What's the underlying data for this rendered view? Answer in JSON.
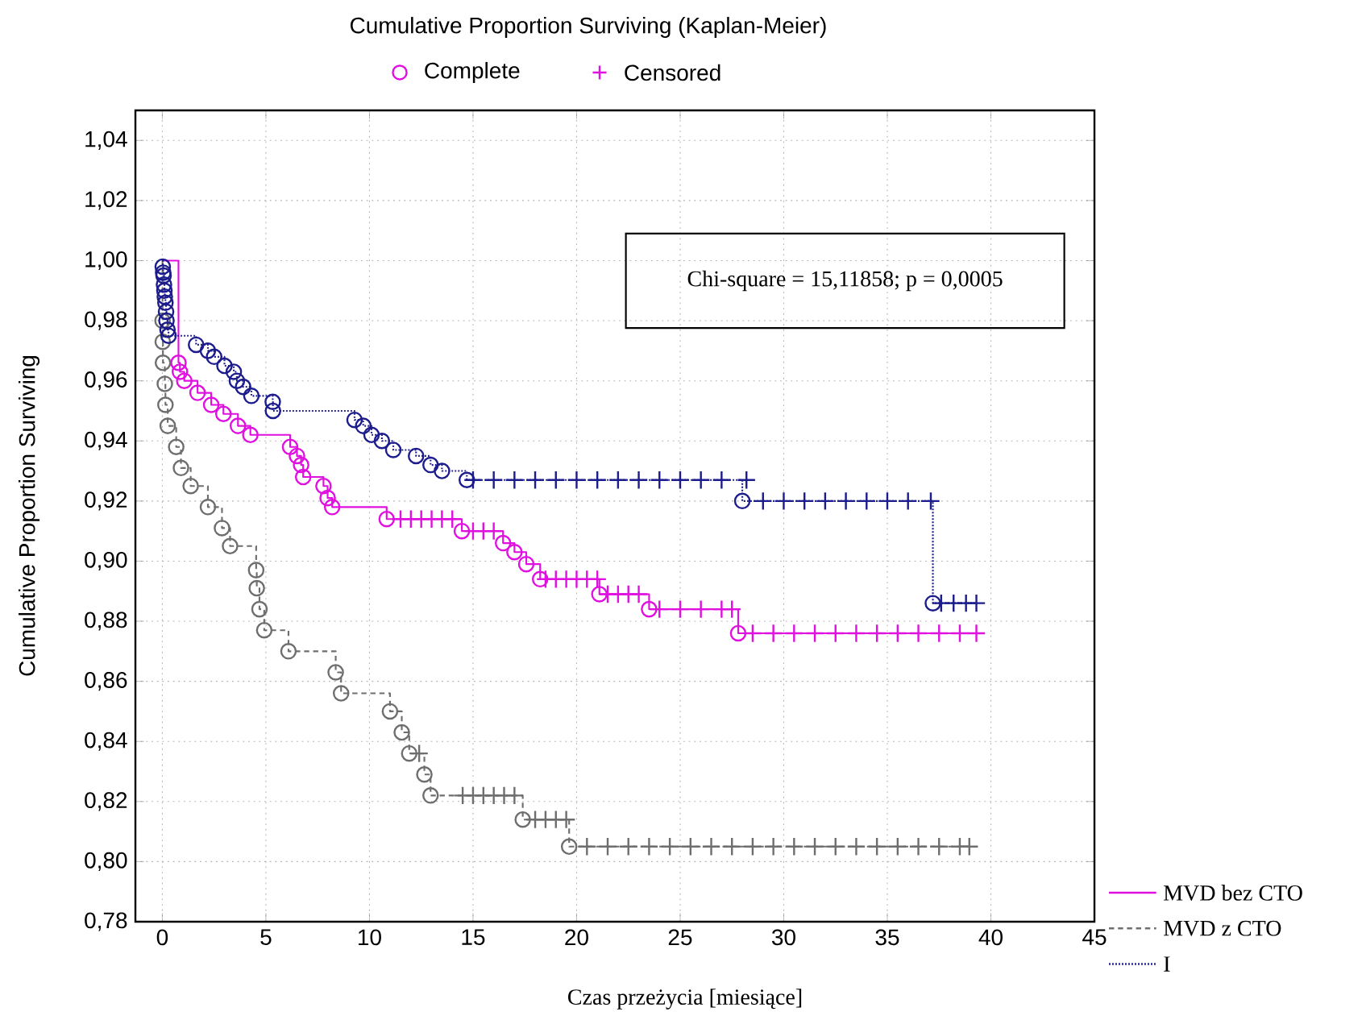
{
  "chart_data": {
    "type": "step",
    "title": "Cumulative Proportion Surviving (Kaplan-Meier)",
    "xlabel": "Czas przeżycia [miesiące]",
    "ylabel": "Cumulative Proportion Surviving",
    "xlim": [
      -1.3,
      45
    ],
    "ylim": [
      0.78,
      1.05
    ],
    "xticks": [
      0,
      5,
      10,
      15,
      20,
      25,
      30,
      35,
      40,
      45
    ],
    "yticks": [
      {
        "value": 0.78,
        "label": "0,78"
      },
      {
        "value": 0.8,
        "label": "0,80"
      },
      {
        "value": 0.82,
        "label": "0,82"
      },
      {
        "value": 0.84,
        "label": "0,84"
      },
      {
        "value": 0.86,
        "label": "0,86"
      },
      {
        "value": 0.88,
        "label": "0,88"
      },
      {
        "value": 0.9,
        "label": "0,90"
      },
      {
        "value": 0.92,
        "label": "0,92"
      },
      {
        "value": 0.94,
        "label": "0,94"
      },
      {
        "value": 0.96,
        "label": "0,96"
      },
      {
        "value": 0.98,
        "label": "0,98"
      },
      {
        "value": 1.0,
        "label": "1,00"
      },
      {
        "value": 1.02,
        "label": "1,02"
      },
      {
        "value": 1.04,
        "label": "1,04"
      }
    ],
    "grid": true,
    "legend": "bottom right",
    "annotations": [
      "Chi-square = 15,11858; p = 0,0005"
    ],
    "series": [
      {
        "name": "MVD bez CTO",
        "color": "#e010e0",
        "line_style": "solid",
        "x": [
          0,
          0.78,
          0.85,
          1.06,
          1.7,
          2.36,
          2.95,
          3.65,
          4.25,
          6.17,
          6.5,
          6.7,
          6.8,
          7.78,
          7.98,
          8.2,
          10.83,
          14.46,
          16.45,
          17.0,
          17.57,
          18.24,
          21.1,
          23.5,
          27.8,
          39.3
        ],
        "values": [
          1.0,
          0.966,
          0.963,
          0.96,
          0.956,
          0.952,
          0.949,
          0.945,
          0.942,
          0.938,
          0.935,
          0.932,
          0.928,
          0.925,
          0.921,
          0.918,
          0.914,
          0.91,
          0.906,
          0.903,
          0.899,
          0.894,
          0.889,
          0.884,
          0.876,
          0.876
        ]
      },
      {
        "name": "MVD z CTO",
        "color": "#6e6e6e",
        "line_style": "dashed",
        "x": [
          0,
          0.01,
          0.02,
          0.03,
          0.12,
          0.15,
          0.26,
          0.67,
          0.9,
          1.37,
          2.2,
          2.88,
          3.27,
          4.53,
          4.56,
          4.69,
          4.92,
          6.09,
          8.37,
          8.63,
          10.99,
          11.56,
          11.92,
          12.65,
          12.95,
          17.4,
          19.64,
          38.96
        ],
        "values": [
          1.0,
          0.98,
          0.973,
          0.966,
          0.959,
          0.952,
          0.945,
          0.938,
          0.931,
          0.925,
          0.918,
          0.911,
          0.905,
          0.897,
          0.891,
          0.884,
          0.877,
          0.87,
          0.863,
          0.856,
          0.85,
          0.843,
          0.836,
          0.829,
          0.822,
          0.814,
          0.805,
          0.805
        ]
      },
      {
        "name": "I",
        "color": "#1c1c8c",
        "line_style": "dotted",
        "x": [
          0,
          0.02,
          0.04,
          0.06,
          0.08,
          0.1,
          0.12,
          0.15,
          0.18,
          0.2,
          0.25,
          0.3,
          1.63,
          2.2,
          2.5,
          3.0,
          3.45,
          3.6,
          3.9,
          4.3,
          5.33,
          5.34,
          9.28,
          9.7,
          10.1,
          10.6,
          11.15,
          12.25,
          12.95,
          13.5,
          14.7,
          28.0,
          37.2,
          39.3
        ],
        "values": [
          1.0,
          0.998,
          0.996,
          0.995,
          0.992,
          0.99,
          0.988,
          0.986,
          0.983,
          0.98,
          0.977,
          0.975,
          0.972,
          0.97,
          0.968,
          0.965,
          0.963,
          0.96,
          0.958,
          0.955,
          0.953,
          0.95,
          0.947,
          0.945,
          0.942,
          0.94,
          0.937,
          0.935,
          0.932,
          0.93,
          0.927,
          0.92,
          0.886,
          0.886
        ]
      },
      {
        "name": "Complete",
        "type": "scatter",
        "marker": "circle",
        "x": [
          0.78,
          0.85,
          1.06,
          1.7,
          2.36,
          2.95,
          3.65,
          4.25,
          6.17,
          6.5,
          6.7,
          6.8,
          7.78,
          7.98,
          8.2,
          10.83,
          14.46,
          16.45,
          17.0,
          17.57,
          18.24,
          21.1,
          23.5,
          27.8,
          0.01,
          0.02,
          0.03,
          0.12,
          0.15,
          0.26,
          0.67,
          0.9,
          1.37,
          2.2,
          2.88,
          3.27,
          4.53,
          4.56,
          4.69,
          4.92,
          6.09,
          8.37,
          8.63,
          10.99,
          11.56,
          11.92,
          12.65,
          12.95,
          17.4,
          19.64,
          0.02,
          0.04,
          0.06,
          0.08,
          0.1,
          0.12,
          0.15,
          0.18,
          0.2,
          0.25,
          0.3,
          1.63,
          2.2,
          2.5,
          3.0,
          3.45,
          3.6,
          3.9,
          4.3,
          5.33,
          5.34,
          9.28,
          9.7,
          10.1,
          10.6,
          11.15,
          12.25,
          12.95,
          13.5,
          14.7,
          28.0,
          37.2
        ],
        "values": [
          0.966,
          0.963,
          0.96,
          0.956,
          0.952,
          0.949,
          0.945,
          0.942,
          0.938,
          0.935,
          0.932,
          0.928,
          0.925,
          0.921,
          0.918,
          0.914,
          0.91,
          0.906,
          0.903,
          0.899,
          0.894,
          0.889,
          0.884,
          0.876,
          0.98,
          0.973,
          0.966,
          0.959,
          0.952,
          0.945,
          0.938,
          0.931,
          0.925,
          0.918,
          0.911,
          0.905,
          0.897,
          0.891,
          0.884,
          0.877,
          0.87,
          0.863,
          0.856,
          0.85,
          0.843,
          0.836,
          0.829,
          0.822,
          0.814,
          0.805,
          0.998,
          0.996,
          0.995,
          0.992,
          0.99,
          0.988,
          0.986,
          0.983,
          0.98,
          0.977,
          0.975,
          0.972,
          0.97,
          0.968,
          0.965,
          0.963,
          0.96,
          0.958,
          0.955,
          0.953,
          0.95,
          0.947,
          0.945,
          0.942,
          0.94,
          0.937,
          0.935,
          0.932,
          0.93,
          0.927,
          0.92,
          0.886
        ],
        "colors": [
          "#e010e0",
          "#e010e0",
          "#e010e0",
          "#e010e0",
          "#e010e0",
          "#e010e0",
          "#e010e0",
          "#e010e0",
          "#e010e0",
          "#e010e0",
          "#e010e0",
          "#e010e0",
          "#e010e0",
          "#e010e0",
          "#e010e0",
          "#e010e0",
          "#e010e0",
          "#e010e0",
          "#e010e0",
          "#e010e0",
          "#e010e0",
          "#e010e0",
          "#e010e0",
          "#e010e0",
          "#6e6e6e",
          "#6e6e6e",
          "#6e6e6e",
          "#6e6e6e",
          "#6e6e6e",
          "#6e6e6e",
          "#6e6e6e",
          "#6e6e6e",
          "#6e6e6e",
          "#6e6e6e",
          "#6e6e6e",
          "#6e6e6e",
          "#6e6e6e",
          "#6e6e6e",
          "#6e6e6e",
          "#6e6e6e",
          "#6e6e6e",
          "#6e6e6e",
          "#6e6e6e",
          "#6e6e6e",
          "#6e6e6e",
          "#6e6e6e",
          "#6e6e6e",
          "#6e6e6e",
          "#6e6e6e",
          "#6e6e6e",
          "#1c1c8c",
          "#1c1c8c",
          "#1c1c8c",
          "#1c1c8c",
          "#1c1c8c",
          "#1c1c8c",
          "#1c1c8c",
          "#1c1c8c",
          "#1c1c8c",
          "#1c1c8c",
          "#1c1c8c",
          "#1c1c8c",
          "#1c1c8c",
          "#1c1c8c",
          "#1c1c8c",
          "#1c1c8c",
          "#1c1c8c",
          "#1c1c8c",
          "#1c1c8c",
          "#1c1c8c",
          "#1c1c8c",
          "#1c1c8c",
          "#1c1c8c",
          "#1c1c8c",
          "#1c1c8c",
          "#1c1c8c",
          "#1c1c8c",
          "#1c1c8c",
          "#1c1c8c",
          "#1c1c8c",
          "#1c1c8c",
          "#1c1c8c"
        ]
      },
      {
        "name": "Censored",
        "type": "scatter",
        "marker": "cross",
        "x": [
          11.5,
          12,
          12.5,
          13,
          13.5,
          14,
          15,
          15.5,
          16,
          18.5,
          19,
          19.5,
          20,
          20.5,
          21,
          21.5,
          22,
          22.5,
          23,
          24,
          25,
          26,
          27,
          27.5,
          28.5,
          29.5,
          30.5,
          31.5,
          32.5,
          33.5,
          34.5,
          35.5,
          36.5,
          37.5,
          38.5,
          39.3,
          12.4,
          14.5,
          15,
          15.5,
          16,
          16.5,
          17,
          18,
          18.5,
          19,
          19.5,
          20.5,
          21.5,
          22.5,
          23.5,
          24.5,
          25.5,
          26.5,
          27.5,
          28.5,
          29.5,
          30.5,
          31.5,
          32.5,
          33.5,
          34.5,
          35.5,
          36.5,
          37.5,
          38.5,
          38.96,
          15,
          16,
          17,
          18,
          19,
          20,
          21,
          22,
          23,
          24,
          25,
          26,
          27,
          28.2,
          29,
          30,
          31,
          32,
          33,
          34,
          35,
          36,
          37.1,
          37.6,
          38.2,
          38.8,
          39.3
        ],
        "values": [
          0.914,
          0.914,
          0.914,
          0.914,
          0.914,
          0.914,
          0.91,
          0.91,
          0.91,
          0.894,
          0.894,
          0.894,
          0.894,
          0.894,
          0.894,
          0.889,
          0.889,
          0.889,
          0.889,
          0.884,
          0.884,
          0.884,
          0.884,
          0.884,
          0.876,
          0.876,
          0.876,
          0.876,
          0.876,
          0.876,
          0.876,
          0.876,
          0.876,
          0.876,
          0.876,
          0.876,
          0.836,
          0.822,
          0.822,
          0.822,
          0.822,
          0.822,
          0.822,
          0.814,
          0.814,
          0.814,
          0.814,
          0.805,
          0.805,
          0.805,
          0.805,
          0.805,
          0.805,
          0.805,
          0.805,
          0.805,
          0.805,
          0.805,
          0.805,
          0.805,
          0.805,
          0.805,
          0.805,
          0.805,
          0.805,
          0.805,
          0.805,
          0.927,
          0.927,
          0.927,
          0.927,
          0.927,
          0.927,
          0.927,
          0.927,
          0.927,
          0.927,
          0.927,
          0.927,
          0.927,
          0.927,
          0.92,
          0.92,
          0.92,
          0.92,
          0.92,
          0.92,
          0.92,
          0.92,
          0.92,
          0.886,
          0.886,
          0.886,
          0.886
        ],
        "colors": [
          "#e010e0",
          "#e010e0",
          "#e010e0",
          "#e010e0",
          "#e010e0",
          "#e010e0",
          "#e010e0",
          "#e010e0",
          "#e010e0",
          "#e010e0",
          "#e010e0",
          "#e010e0",
          "#e010e0",
          "#e010e0",
          "#e010e0",
          "#e010e0",
          "#e010e0",
          "#e010e0",
          "#e010e0",
          "#e010e0",
          "#e010e0",
          "#e010e0",
          "#e010e0",
          "#e010e0",
          "#e010e0",
          "#e010e0",
          "#e010e0",
          "#e010e0",
          "#e010e0",
          "#e010e0",
          "#e010e0",
          "#e010e0",
          "#e010e0",
          "#e010e0",
          "#e010e0",
          "#e010e0",
          "#6e6e6e",
          "#6e6e6e",
          "#6e6e6e",
          "#6e6e6e",
          "#6e6e6e",
          "#6e6e6e",
          "#6e6e6e",
          "#6e6e6e",
          "#6e6e6e",
          "#6e6e6e",
          "#6e6e6e",
          "#6e6e6e",
          "#6e6e6e",
          "#6e6e6e",
          "#6e6e6e",
          "#6e6e6e",
          "#6e6e6e",
          "#6e6e6e",
          "#6e6e6e",
          "#6e6e6e",
          "#6e6e6e",
          "#6e6e6e",
          "#6e6e6e",
          "#6e6e6e",
          "#6e6e6e",
          "#6e6e6e",
          "#6e6e6e",
          "#6e6e6e",
          "#6e6e6e",
          "#6e6e6e",
          "#6e6e6e",
          "#1c1c8c",
          "#1c1c8c",
          "#1c1c8c",
          "#1c1c8c",
          "#1c1c8c",
          "#1c1c8c",
          "#1c1c8c",
          "#1c1c8c",
          "#1c1c8c",
          "#1c1c8c",
          "#1c1c8c",
          "#1c1c8c",
          "#1c1c8c",
          "#1c1c8c",
          "#1c1c8c",
          "#1c1c8c",
          "#1c1c8c",
          "#1c1c8c",
          "#1c1c8c",
          "#1c1c8c",
          "#1c1c8c",
          "#1c1c8c",
          "#1c1c8c",
          "#1c1c8c",
          "#1c1c8c",
          "#1c1c8c",
          "#1c1c8c"
        ]
      }
    ]
  }
}
